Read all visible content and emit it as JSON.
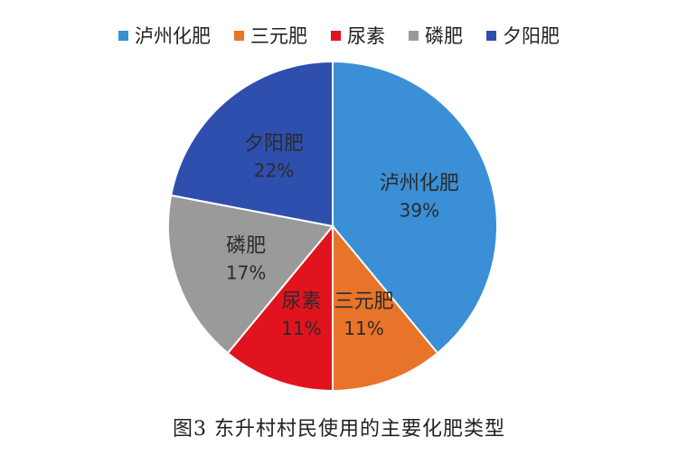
{
  "chart_data": {
    "type": "pie",
    "title": "",
    "legend_position": "top",
    "slices": [
      {
        "label": "泸州化肥",
        "value": 39,
        "percent_label": "39%",
        "color": "#3a8fd6"
      },
      {
        "label": "三元肥",
        "value": 11,
        "percent_label": "11%",
        "color": "#e8742a"
      },
      {
        "label": "尿素",
        "value": 11,
        "percent_label": "11%",
        "color": "#e1131f"
      },
      {
        "label": "磷肥",
        "value": 17,
        "percent_label": "17%",
        "color": "#9a9a9a"
      },
      {
        "label": "夕阳肥",
        "value": 22,
        "percent_label": "22%",
        "color": "#2e4fae"
      }
    ]
  },
  "caption": "图3 东升村村民使用的主要化肥类型"
}
